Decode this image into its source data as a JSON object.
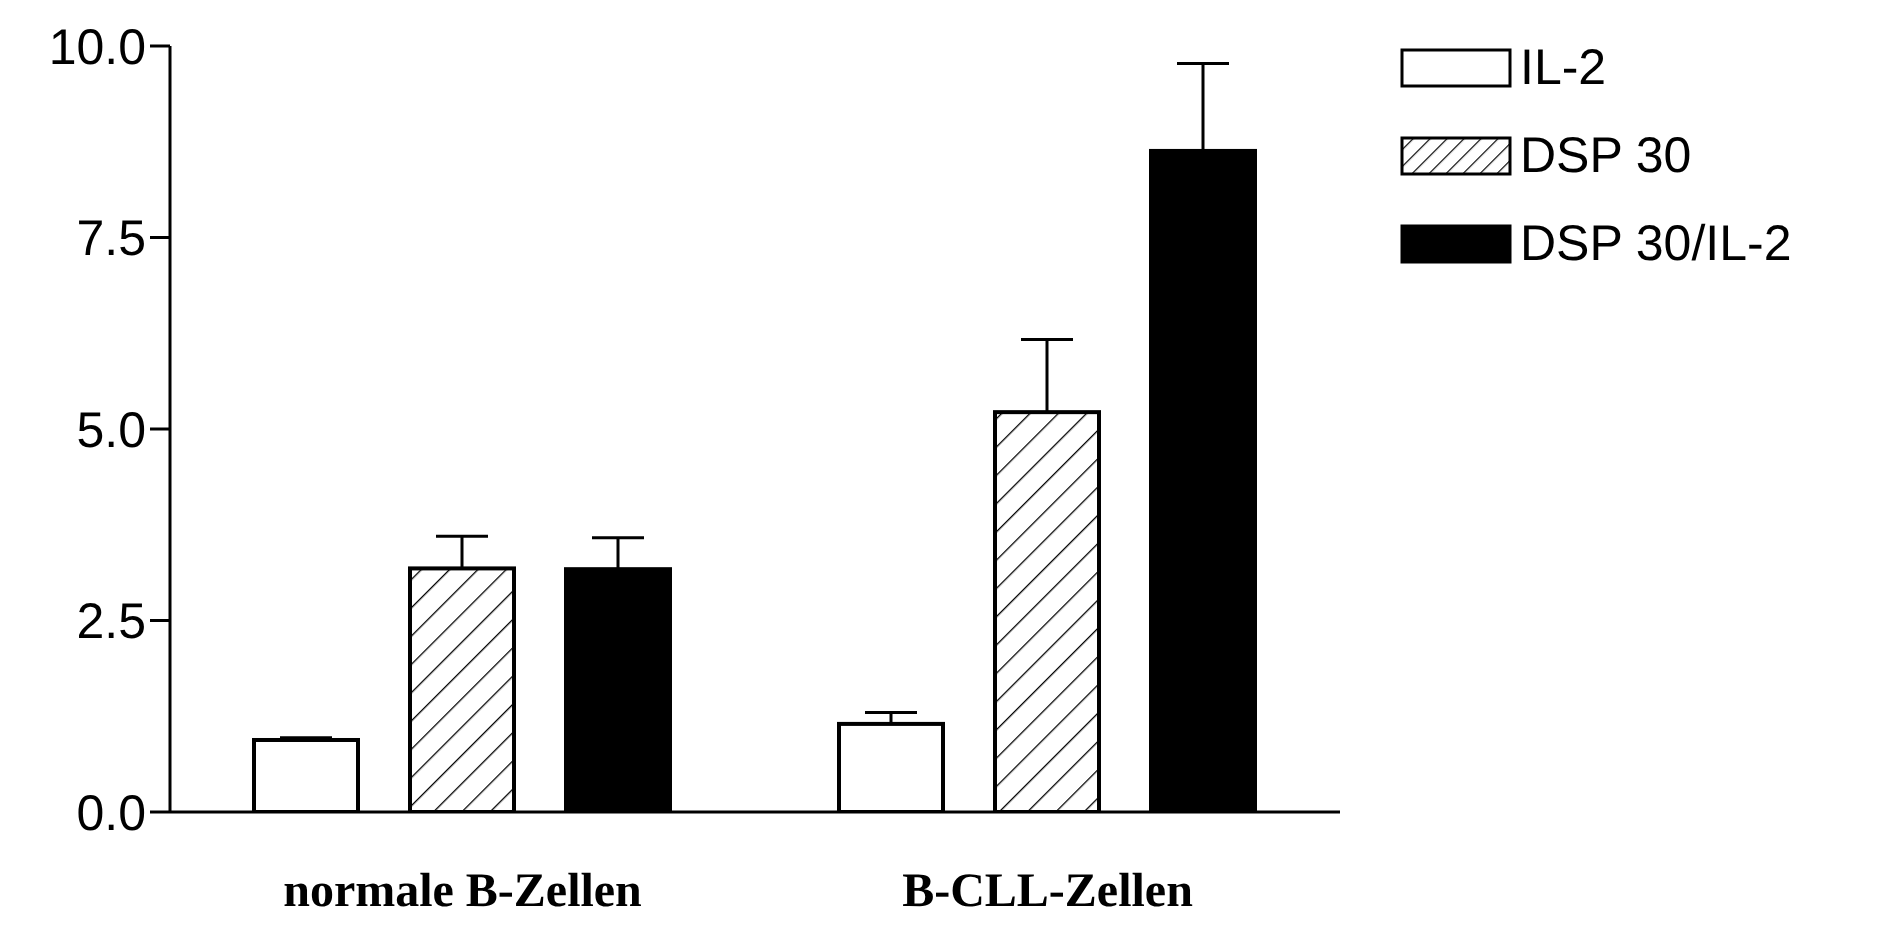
{
  "chart_data": {
    "type": "bar",
    "categories": [
      "normale B-Zellen",
      "B-CLL-Zellen"
    ],
    "series": [
      {
        "name": "IL-2",
        "color": "#ffffff",
        "values": [
          0.94,
          1.15
        ],
        "errors": [
          [
            0.94,
            0.97
          ],
          [
            1.15,
            1.3
          ]
        ]
      },
      {
        "name": "DSP 30",
        "color": "#ffffff",
        "values": [
          3.18,
          5.22
        ],
        "errors": [
          [
            3.18,
            3.6
          ],
          [
            5.22,
            6.17
          ]
        ]
      },
      {
        "name": "DSP 30/IL-2",
        "color": "#000000",
        "values": [
          3.17,
          8.63
        ],
        "errors": [
          [
            3.17,
            3.58
          ],
          [
            8.63,
            9.77
          ]
        ]
      }
    ],
    "ylim": [
      0,
      10
    ],
    "yticks": [
      {
        "value": 0,
        "label": "0.0"
      },
      {
        "value": 2.5,
        "label": "2.5"
      },
      {
        "value": 5,
        "label": "5.0"
      },
      {
        "value": 7.5,
        "label": "7.5"
      },
      {
        "value": 10,
        "label": "10.0"
      }
    ],
    "grid": false,
    "legend": "top right"
  }
}
